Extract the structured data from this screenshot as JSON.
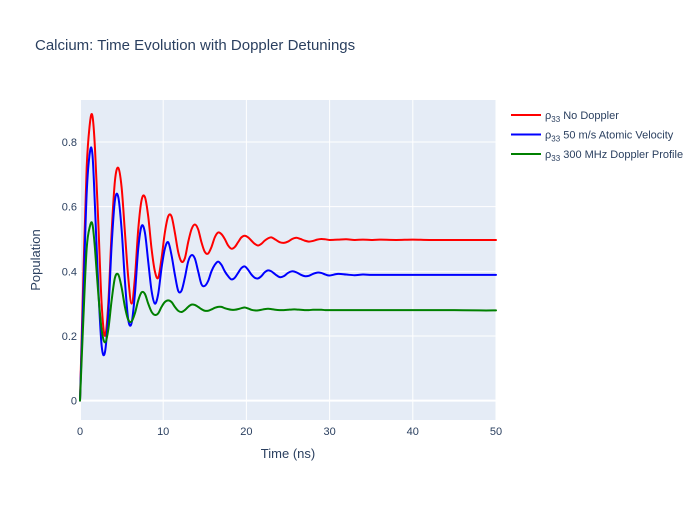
{
  "chart_data": {
    "type": "line",
    "title": "Calcium: Time Evolution with Doppler Detunings",
    "xlabel": "Time (ns)",
    "ylabel": "Population",
    "xlim": [
      0,
      50
    ],
    "ylim": [
      -0.06,
      0.93
    ],
    "x_ticks": [
      0,
      10,
      20,
      30,
      40,
      50
    ],
    "y_ticks": [
      0,
      0.2,
      0.4,
      0.6,
      0.8
    ],
    "x_tick_labels": [
      "0",
      "10",
      "20",
      "30",
      "40",
      "50"
    ],
    "y_tick_labels": [
      "0",
      "0.2",
      "0.4",
      "0.6",
      "0.8"
    ],
    "grid": true,
    "legend_position": "top-right-outside",
    "series": [
      {
        "name": "ρ33 No Doppler",
        "legend_main": "ρ",
        "legend_sub": "33",
        "legend_rest": " No Doppler",
        "color": "#ff0000",
        "x": [
          0,
          0.4,
          0.8,
          1.2,
          1.5,
          1.8,
          2.2,
          2.6,
          3.0,
          3.4,
          3.8,
          4.2,
          4.6,
          5.0,
          5.4,
          5.8,
          6.2,
          6.6,
          7.0,
          7.4,
          7.8,
          8.2,
          8.6,
          9.0,
          9.4,
          9.8,
          10.2,
          10.6,
          11.0,
          11.4,
          11.8,
          12.2,
          12.6,
          13.0,
          13.4,
          13.8,
          14.2,
          14.6,
          15.0,
          15.4,
          15.8,
          16.2,
          16.6,
          17.0,
          17.4,
          17.8,
          18.2,
          18.6,
          19.0,
          19.4,
          19.8,
          20.2,
          20.6,
          21.0,
          21.4,
          21.8,
          22.2,
          22.6,
          23.0,
          23.5,
          24.0,
          24.5,
          25.0,
          25.5,
          26.0,
          26.5,
          27.0,
          27.5,
          28.0,
          28.5,
          29.0,
          29.5,
          30.0,
          31.0,
          32.0,
          33.0,
          34.0,
          35.0,
          36.0,
          38.0,
          40.0,
          42.0,
          45.0,
          48.0,
          50.0
        ],
        "y": [
          0,
          0.38,
          0.72,
          0.86,
          0.88,
          0.78,
          0.55,
          0.3,
          0.2,
          0.3,
          0.52,
          0.68,
          0.72,
          0.66,
          0.52,
          0.38,
          0.3,
          0.38,
          0.53,
          0.62,
          0.63,
          0.57,
          0.47,
          0.4,
          0.38,
          0.44,
          0.52,
          0.57,
          0.57,
          0.52,
          0.46,
          0.43,
          0.44,
          0.49,
          0.53,
          0.545,
          0.53,
          0.49,
          0.46,
          0.455,
          0.475,
          0.505,
          0.52,
          0.515,
          0.5,
          0.48,
          0.47,
          0.475,
          0.49,
          0.505,
          0.51,
          0.505,
          0.495,
          0.485,
          0.48,
          0.485,
          0.495,
          0.502,
          0.505,
          0.498,
          0.49,
          0.488,
          0.492,
          0.5,
          0.504,
          0.5,
          0.495,
          0.492,
          0.494,
          0.498,
          0.5,
          0.499,
          0.497,
          0.498,
          0.499,
          0.497,
          0.498,
          0.497,
          0.498,
          0.497,
          0.498,
          0.497,
          0.497,
          0.497,
          0.497
        ]
      },
      {
        "name": "ρ33 50 m/s Atomic Velocity",
        "legend_main": "ρ",
        "legend_sub": "33",
        "legend_rest": " 50 m/s Atomic Velocity",
        "color": "#0000ff",
        "x": [
          0,
          0.4,
          0.8,
          1.2,
          1.5,
          1.8,
          2.2,
          2.6,
          3.0,
          3.4,
          3.8,
          4.2,
          4.6,
          5.0,
          5.4,
          5.8,
          6.2,
          6.6,
          7.0,
          7.4,
          7.8,
          8.2,
          8.6,
          9.0,
          9.4,
          9.8,
          10.2,
          10.6,
          11.0,
          11.4,
          11.8,
          12.2,
          12.6,
          13.0,
          13.4,
          13.8,
          14.2,
          14.6,
          15.0,
          15.4,
          15.8,
          16.2,
          16.6,
          17.0,
          17.4,
          17.8,
          18.2,
          18.6,
          19.0,
          19.4,
          19.8,
          20.2,
          20.6,
          21.0,
          21.4,
          21.8,
          22.2,
          22.6,
          23.0,
          23.5,
          24.0,
          24.5,
          25.0,
          25.5,
          26.0,
          26.5,
          27.0,
          27.5,
          28.0,
          28.5,
          29.0,
          29.5,
          30.0,
          31.0,
          32.0,
          33.0,
          34.0,
          35.0,
          36.0,
          38.0,
          40.0,
          42.0,
          45.0,
          48.0,
          50.0
        ],
        "y": [
          0,
          0.32,
          0.64,
          0.77,
          0.76,
          0.6,
          0.35,
          0.17,
          0.15,
          0.27,
          0.48,
          0.62,
          0.63,
          0.53,
          0.37,
          0.25,
          0.24,
          0.33,
          0.47,
          0.54,
          0.52,
          0.43,
          0.34,
          0.3,
          0.33,
          0.41,
          0.47,
          0.49,
          0.45,
          0.39,
          0.34,
          0.34,
          0.38,
          0.43,
          0.45,
          0.44,
          0.4,
          0.36,
          0.355,
          0.37,
          0.4,
          0.42,
          0.43,
          0.42,
          0.4,
          0.385,
          0.375,
          0.38,
          0.395,
          0.41,
          0.415,
          0.405,
          0.39,
          0.38,
          0.378,
          0.385,
          0.397,
          0.403,
          0.4,
          0.39,
          0.382,
          0.385,
          0.395,
          0.4,
          0.397,
          0.39,
          0.385,
          0.386,
          0.392,
          0.396,
          0.395,
          0.39,
          0.387,
          0.392,
          0.39,
          0.388,
          0.39,
          0.389,
          0.389,
          0.389,
          0.389,
          0.389,
          0.389,
          0.389,
          0.389
        ]
      },
      {
        "name": "ρ33 300 MHz Doppler Profile",
        "legend_main": "ρ",
        "legend_sub": "33",
        "legend_rest": " 300 MHz Doppler Profile",
        "color": "#008000",
        "x": [
          0,
          0.4,
          0.8,
          1.2,
          1.5,
          1.8,
          2.2,
          2.6,
          3.0,
          3.4,
          3.8,
          4.2,
          4.6,
          5.0,
          5.4,
          5.8,
          6.2,
          6.6,
          7.0,
          7.4,
          7.8,
          8.2,
          8.6,
          9.0,
          9.4,
          9.8,
          10.2,
          10.6,
          11.0,
          11.4,
          11.8,
          12.2,
          12.6,
          13.0,
          13.4,
          13.8,
          14.2,
          14.6,
          15.0,
          15.4,
          15.8,
          16.2,
          16.6,
          17.0,
          17.4,
          17.8,
          18.2,
          18.6,
          19.0,
          19.4,
          19.8,
          20.2,
          20.6,
          21.0,
          21.4,
          21.8,
          22.2,
          22.6,
          23.0,
          23.5,
          24.0,
          24.5,
          25.0,
          25.5,
          26.0,
          26.5,
          27.0,
          27.5,
          28.0,
          28.5,
          29.0,
          29.5,
          30.0,
          31.0,
          32.0,
          33.0,
          34.0,
          35.0,
          36.0,
          38.0,
          40.0,
          42.0,
          45.0,
          48.0,
          50.0
        ],
        "y": [
          0,
          0.25,
          0.47,
          0.54,
          0.545,
          0.47,
          0.33,
          0.22,
          0.18,
          0.22,
          0.31,
          0.38,
          0.39,
          0.35,
          0.29,
          0.25,
          0.245,
          0.27,
          0.31,
          0.335,
          0.33,
          0.3,
          0.275,
          0.265,
          0.27,
          0.29,
          0.305,
          0.31,
          0.305,
          0.29,
          0.278,
          0.274,
          0.28,
          0.29,
          0.297,
          0.296,
          0.29,
          0.283,
          0.278,
          0.278,
          0.282,
          0.287,
          0.29,
          0.29,
          0.286,
          0.283,
          0.281,
          0.281,
          0.283,
          0.286,
          0.288,
          0.285,
          0.281,
          0.279,
          0.279,
          0.281,
          0.283,
          0.284,
          0.283,
          0.281,
          0.28,
          0.28,
          0.281,
          0.282,
          0.282,
          0.281,
          0.28,
          0.28,
          0.281,
          0.281,
          0.281,
          0.28,
          0.28,
          0.28,
          0.28,
          0.28,
          0.28,
          0.28,
          0.28,
          0.28,
          0.28,
          0.28,
          0.28,
          0.279,
          0.279
        ]
      }
    ]
  }
}
